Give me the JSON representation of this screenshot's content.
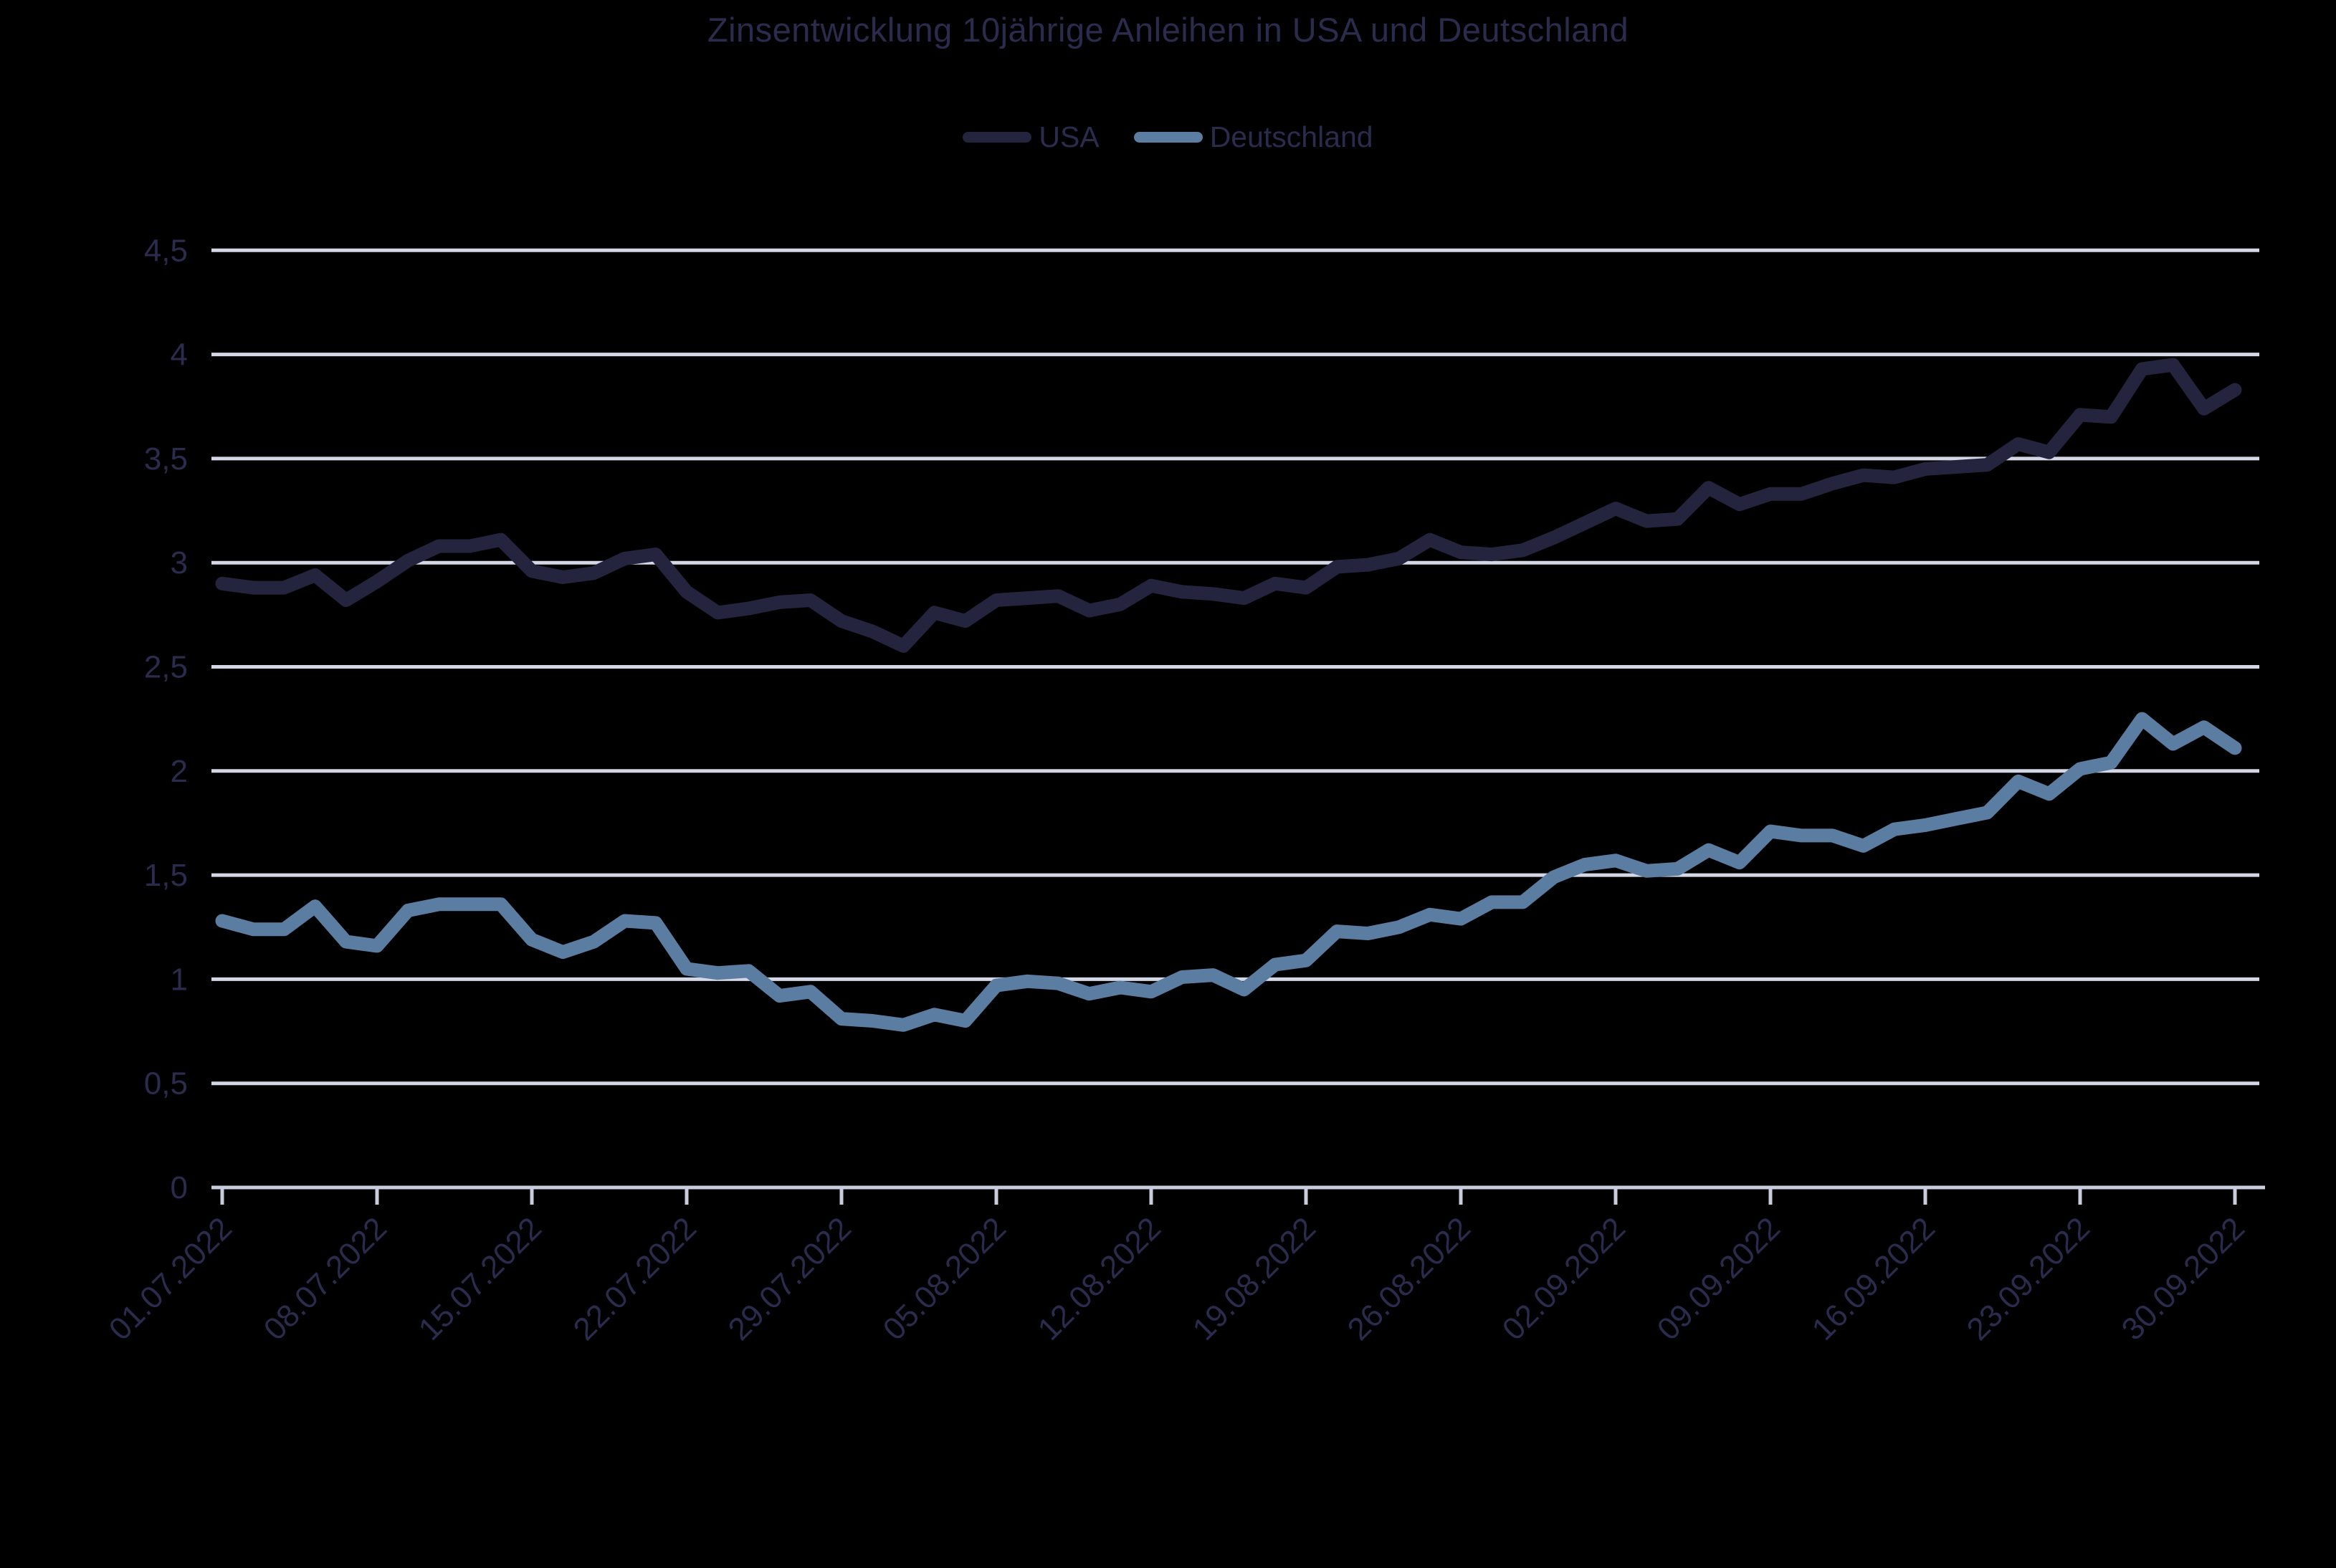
{
  "header": {
    "title": "Zinsentwicklung 10jährige Anleihen in USA und Deutschland"
  },
  "chart_data": {
    "type": "line",
    "title": "Zinsentwicklung 10jährige Anleihen in USA und Deutschland",
    "xlabel": "",
    "ylabel": "",
    "ylim": [
      0,
      4.5
    ],
    "grid": true,
    "legend_position": "top",
    "decimal_separator": ",",
    "colors": {
      "background": "#000000",
      "grid": "#D4D7E5",
      "axis": "#C9CCDC",
      "text": "#2B2B4D"
    },
    "x": [
      "01.07.2022",
      "04.07.2022",
      "05.07.2022",
      "06.07.2022",
      "07.07.2022",
      "08.07.2022",
      "11.07.2022",
      "12.07.2022",
      "13.07.2022",
      "14.07.2022",
      "15.07.2022",
      "18.07.2022",
      "19.07.2022",
      "20.07.2022",
      "21.07.2022",
      "22.07.2022",
      "25.07.2022",
      "26.07.2022",
      "27.07.2022",
      "28.07.2022",
      "29.07.2022",
      "01.08.2022",
      "02.08.2022",
      "03.08.2022",
      "04.08.2022",
      "05.08.2022",
      "08.08.2022",
      "09.08.2022",
      "10.08.2022",
      "11.08.2022",
      "12.08.2022",
      "15.08.2022",
      "16.08.2022",
      "17.08.2022",
      "18.08.2022",
      "19.08.2022",
      "22.08.2022",
      "23.08.2022",
      "24.08.2022",
      "25.08.2022",
      "26.08.2022",
      "29.08.2022",
      "30.08.2022",
      "31.08.2022",
      "01.09.2022",
      "02.09.2022",
      "05.09.2022",
      "06.09.2022",
      "07.09.2022",
      "08.09.2022",
      "09.09.2022",
      "12.09.2022",
      "13.09.2022",
      "14.09.2022",
      "15.09.2022",
      "16.09.2022",
      "19.09.2022",
      "20.09.2022",
      "21.09.2022",
      "22.09.2022",
      "23.09.2022",
      "26.09.2022",
      "27.09.2022",
      "28.09.2022",
      "29.09.2022",
      "30.09.2022"
    ],
    "x_tick_labels": [
      "01.07.2022",
      "08.07.2022",
      "15.07.2022",
      "22.07.2022",
      "29.07.2022",
      "05.08.2022",
      "12.08.2022",
      "19.08.2022",
      "26.08.2022",
      "02.09.2022",
      "09.09.2022",
      "16.09.2022",
      "23.09.2022",
      "30.09.2022"
    ],
    "x_tick_indices": [
      0,
      5,
      10,
      15,
      20,
      25,
      30,
      35,
      40,
      45,
      50,
      55,
      60,
      65
    ],
    "y_ticks": {
      "values": [
        0,
        0.5,
        1,
        1.5,
        2,
        2.5,
        3,
        3.5,
        4,
        4.5
      ],
      "labels": [
        "0",
        "0,5",
        "1",
        "1,5",
        "2",
        "2,5",
        "3",
        "3,5",
        "4",
        "4,5"
      ]
    },
    "series": [
      {
        "name": "USA",
        "color": "#24243E",
        "values": [
          2.9,
          2.88,
          2.88,
          2.94,
          2.82,
          2.91,
          3.01,
          3.08,
          3.08,
          3.11,
          2.96,
          2.93,
          2.95,
          3.02,
          3.04,
          2.86,
          2.76,
          2.78,
          2.81,
          2.82,
          2.72,
          2.67,
          2.6,
          2.76,
          2.72,
          2.82,
          2.83,
          2.84,
          2.77,
          2.8,
          2.89,
          2.86,
          2.85,
          2.83,
          2.9,
          2.88,
          2.98,
          2.99,
          3.02,
          3.11,
          3.05,
          3.04,
          3.06,
          3.12,
          3.19,
          3.26,
          3.2,
          3.21,
          3.36,
          3.28,
          3.33,
          3.33,
          3.38,
          3.42,
          3.41,
          3.45,
          3.46,
          3.47,
          3.57,
          3.53,
          3.71,
          3.7,
          3.93,
          3.95,
          3.74,
          3.83
        ]
      },
      {
        "name": "Deutschland",
        "color": "#5A7DA1",
        "values": [
          1.28,
          1.24,
          1.24,
          1.35,
          1.18,
          1.16,
          1.33,
          1.36,
          1.36,
          1.36,
          1.19,
          1.13,
          1.18,
          1.28,
          1.27,
          1.05,
          1.03,
          1.04,
          0.92,
          0.94,
          0.81,
          0.8,
          0.78,
          0.83,
          0.8,
          0.97,
          0.99,
          0.98,
          0.93,
          0.96,
          0.94,
          1.01,
          1.02,
          0.95,
          1.07,
          1.09,
          1.23,
          1.22,
          1.25,
          1.31,
          1.29,
          1.37,
          1.37,
          1.49,
          1.55,
          1.57,
          1.52,
          1.53,
          1.62,
          1.56,
          1.71,
          1.69,
          1.69,
          1.64,
          1.72,
          1.74,
          1.77,
          1.8,
          1.95,
          1.89,
          2.01,
          2.04,
          2.25,
          2.13,
          2.21,
          2.11
        ]
      }
    ]
  }
}
